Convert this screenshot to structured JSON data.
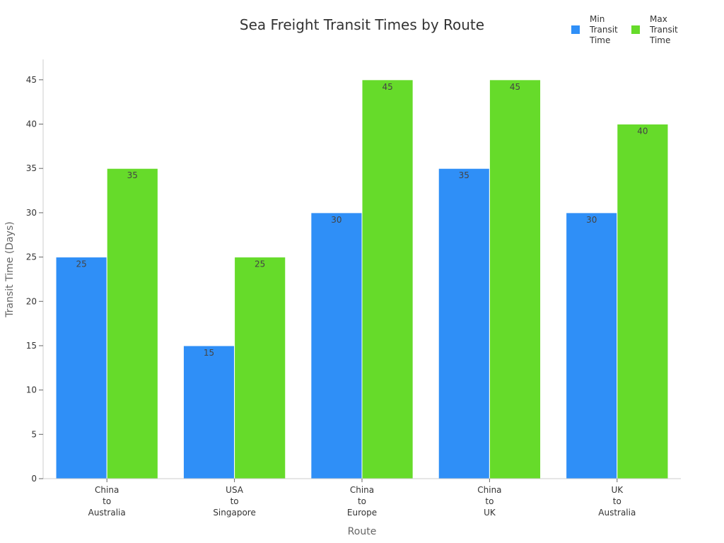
{
  "chart_data": {
    "type": "bar",
    "title": "Sea Freight Transit Times by Route",
    "xlabel": "Route",
    "ylabel": "Transit Time (Days)",
    "categories": [
      [
        "China",
        "to",
        "Australia"
      ],
      [
        "USA",
        "to",
        "Singapore"
      ],
      [
        "China",
        "to",
        "Europe"
      ],
      [
        "China",
        "to",
        "UK"
      ],
      [
        "UK",
        "to",
        "Australia"
      ]
    ],
    "series": [
      {
        "name": [
          "Min",
          "Transit",
          "Time"
        ],
        "values": [
          25,
          15,
          30,
          35,
          30
        ],
        "color": "#2f8ff7"
      },
      {
        "name": [
          "Max",
          "Transit",
          "Time"
        ],
        "values": [
          35,
          25,
          45,
          45,
          40
        ],
        "color": "#66db2a"
      }
    ],
    "yticks": [
      0,
      5,
      10,
      15,
      20,
      25,
      30,
      35,
      40,
      45
    ],
    "ylim": [
      0,
      47.3
    ],
    "grid": false,
    "legend_position": "top-right"
  }
}
